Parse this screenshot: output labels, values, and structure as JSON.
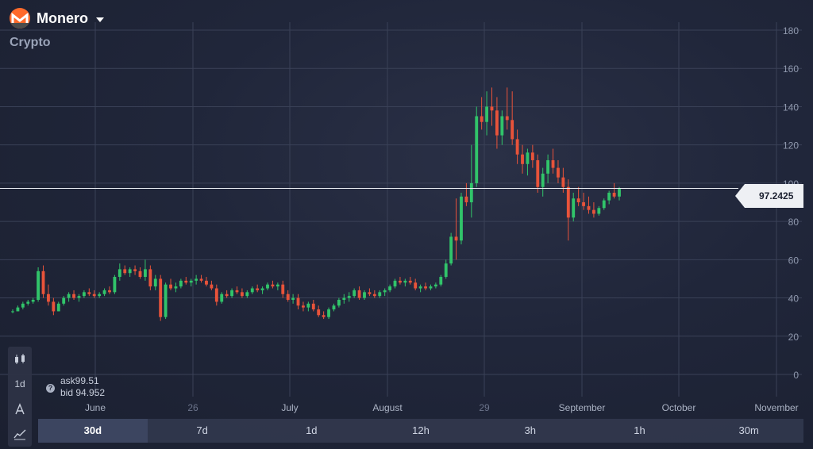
{
  "header": {
    "asset_name": "Monero",
    "category": "Crypto"
  },
  "left_toolbar": {
    "timeframe_label": "1d"
  },
  "quote": {
    "ask": "ask99.51",
    "bid": "bid 94.952",
    "current_price": "97.2425"
  },
  "timeframes": [
    {
      "label": "30d",
      "active": true
    },
    {
      "label": "7d",
      "active": false
    },
    {
      "label": "1d",
      "active": false
    },
    {
      "label": "12h",
      "active": false
    },
    {
      "label": "3h",
      "active": false
    },
    {
      "label": "1h",
      "active": false
    },
    {
      "label": "30m",
      "active": false
    }
  ],
  "colors": {
    "up": "#31c46a",
    "down": "#e8533a",
    "grid": "#3a4157",
    "line": "#e7eaf0"
  },
  "chart_data": {
    "type": "candlestick",
    "ylim": [
      0,
      180
    ],
    "y_ticks": [
      180,
      160,
      140,
      120,
      100,
      80,
      60,
      40,
      20,
      0
    ],
    "x_tick_labels": [
      "June",
      "26",
      "July",
      "August",
      "29",
      "September",
      "October",
      "November"
    ],
    "current_price": 97.2425,
    "candles_ohlc": [
      [
        33,
        34,
        32,
        33
      ],
      [
        33,
        36,
        33,
        35
      ],
      [
        35,
        38,
        34,
        37
      ],
      [
        37,
        39,
        36,
        38
      ],
      [
        38,
        40,
        37,
        39
      ],
      [
        39,
        56,
        38,
        54
      ],
      [
        54,
        57,
        40,
        42
      ],
      [
        42,
        47,
        36,
        38
      ],
      [
        38,
        40,
        31,
        33
      ],
      [
        33,
        38,
        33,
        37
      ],
      [
        37,
        41,
        36,
        40
      ],
      [
        40,
        43,
        38,
        42
      ],
      [
        42,
        44,
        39,
        40
      ],
      [
        40,
        42,
        38,
        41
      ],
      [
        41,
        44,
        40,
        43
      ],
      [
        43,
        45,
        41,
        42
      ],
      [
        42,
        44,
        40,
        41
      ],
      [
        41,
        43,
        40,
        42
      ],
      [
        42,
        45,
        41,
        44
      ],
      [
        44,
        46,
        42,
        43
      ],
      [
        43,
        52,
        42,
        51
      ],
      [
        51,
        58,
        49,
        55
      ],
      [
        55,
        57,
        52,
        53
      ],
      [
        53,
        56,
        51,
        55
      ],
      [
        55,
        57,
        52,
        54
      ],
      [
        54,
        56,
        50,
        51
      ],
      [
        51,
        60,
        49,
        55
      ],
      [
        55,
        57,
        44,
        46
      ],
      [
        46,
        52,
        44,
        50
      ],
      [
        50,
        52,
        28,
        30
      ],
      [
        30,
        48,
        29,
        47
      ],
      [
        47,
        50,
        44,
        45
      ],
      [
        45,
        48,
        43,
        46
      ],
      [
        46,
        50,
        45,
        49
      ],
      [
        49,
        51,
        47,
        48
      ],
      [
        48,
        50,
        46,
        49
      ],
      [
        49,
        52,
        47,
        50
      ],
      [
        50,
        52,
        48,
        49
      ],
      [
        49,
        51,
        46,
        47
      ],
      [
        47,
        49,
        44,
        45
      ],
      [
        45,
        47,
        36,
        38
      ],
      [
        38,
        43,
        37,
        42
      ],
      [
        42,
        44,
        40,
        41
      ],
      [
        41,
        45,
        40,
        44
      ],
      [
        44,
        46,
        42,
        43
      ],
      [
        43,
        45,
        40,
        41
      ],
      [
        41,
        44,
        40,
        43
      ],
      [
        43,
        46,
        42,
        45
      ],
      [
        45,
        47,
        43,
        44
      ],
      [
        44,
        46,
        42,
        45
      ],
      [
        45,
        48,
        44,
        47
      ],
      [
        47,
        49,
        45,
        46
      ],
      [
        46,
        48,
        44,
        47
      ],
      [
        47,
        49,
        40,
        42
      ],
      [
        42,
        44,
        38,
        39
      ],
      [
        39,
        42,
        37,
        40
      ],
      [
        40,
        42,
        34,
        36
      ],
      [
        36,
        38,
        33,
        35
      ],
      [
        35,
        38,
        33,
        37
      ],
      [
        37,
        39,
        33,
        34
      ],
      [
        34,
        36,
        30,
        31
      ],
      [
        31,
        33,
        29,
        30
      ],
      [
        30,
        35,
        29,
        34
      ],
      [
        34,
        37,
        33,
        36
      ],
      [
        36,
        40,
        35,
        39
      ],
      [
        39,
        42,
        37,
        40
      ],
      [
        40,
        43,
        38,
        41
      ],
      [
        41,
        45,
        40,
        44
      ],
      [
        44,
        46,
        39,
        40
      ],
      [
        40,
        44,
        39,
        43
      ],
      [
        43,
        45,
        41,
        42
      ],
      [
        42,
        44,
        40,
        41
      ],
      [
        41,
        44,
        40,
        43
      ],
      [
        43,
        45,
        41,
        44
      ],
      [
        44,
        47,
        43,
        46
      ],
      [
        46,
        50,
        45,
        49
      ],
      [
        49,
        51,
        47,
        48
      ],
      [
        48,
        50,
        46,
        49
      ],
      [
        49,
        51,
        47,
        48
      ],
      [
        48,
        50,
        44,
        45
      ],
      [
        45,
        47,
        43,
        46
      ],
      [
        46,
        48,
        44,
        45
      ],
      [
        45,
        47,
        44,
        46
      ],
      [
        46,
        48,
        45,
        47
      ],
      [
        47,
        52,
        46,
        51
      ],
      [
        51,
        60,
        50,
        58
      ],
      [
        58,
        74,
        57,
        72
      ],
      [
        72,
        92,
        60,
        70
      ],
      [
        70,
        95,
        68,
        93
      ],
      [
        93,
        100,
        88,
        90
      ],
      [
        90,
        120,
        82,
        100
      ],
      [
        100,
        140,
        98,
        135
      ],
      [
        135,
        145,
        128,
        132
      ],
      [
        132,
        148,
        125,
        140
      ],
      [
        140,
        150,
        130,
        138
      ],
      [
        138,
        145,
        118,
        125
      ],
      [
        125,
        138,
        120,
        135
      ],
      [
        135,
        150,
        128,
        133
      ],
      [
        133,
        148,
        120,
        123
      ],
      [
        123,
        128,
        110,
        115
      ],
      [
        115,
        120,
        105,
        110
      ],
      [
        110,
        118,
        104,
        116
      ],
      [
        116,
        120,
        108,
        112
      ],
      [
        112,
        115,
        95,
        98
      ],
      [
        98,
        108,
        93,
        105
      ],
      [
        105,
        115,
        100,
        112
      ],
      [
        112,
        118,
        105,
        108
      ],
      [
        108,
        112,
        100,
        103
      ],
      [
        103,
        108,
        95,
        98
      ],
      [
        98,
        102,
        70,
        82
      ],
      [
        82,
        95,
        80,
        92
      ],
      [
        92,
        98,
        88,
        90
      ],
      [
        90,
        95,
        86,
        88
      ],
      [
        88,
        93,
        84,
        86
      ],
      [
        86,
        90,
        82,
        84
      ],
      [
        84,
        88,
        83,
        87
      ],
      [
        87,
        92,
        86,
        91
      ],
      [
        91,
        96,
        89,
        95
      ],
      [
        95,
        100,
        92,
        93
      ],
      [
        93,
        98,
        91,
        97
      ]
    ]
  }
}
